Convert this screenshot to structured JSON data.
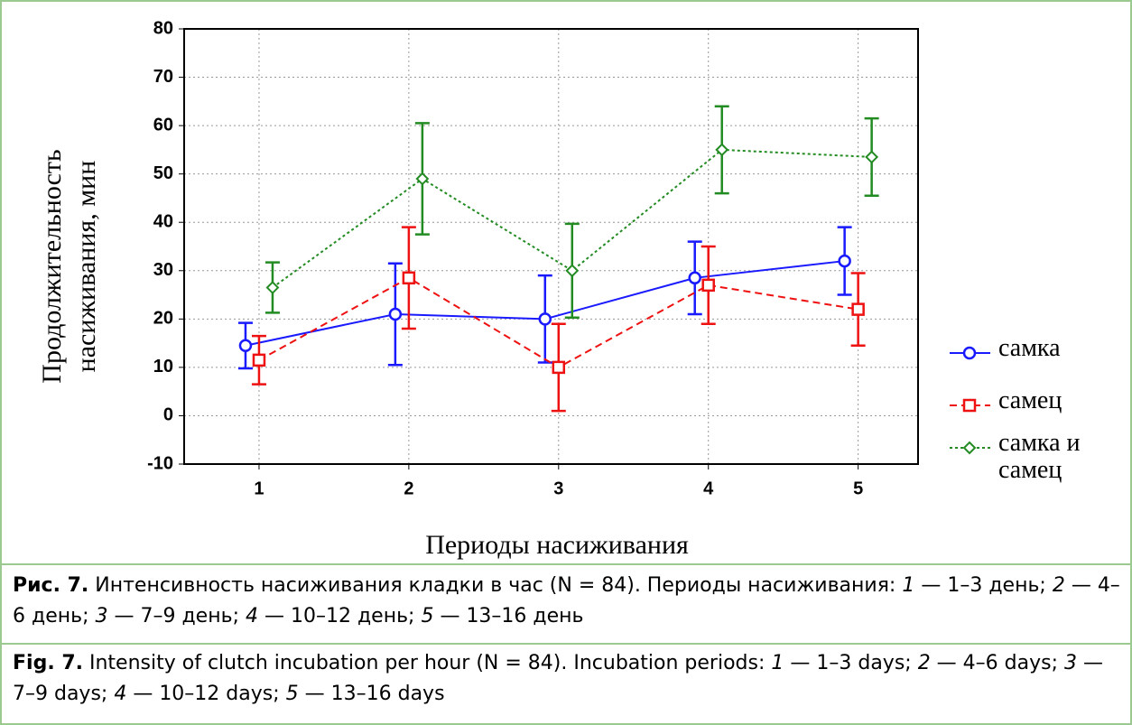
{
  "chart_data": {
    "type": "line",
    "x": [
      1,
      2,
      3,
      4,
      5
    ],
    "xlim": [
      0.5,
      5.4
    ],
    "xticks": [
      1,
      2,
      3,
      4,
      5
    ],
    "ylim": [
      -10,
      80
    ],
    "yticks": [
      -10,
      0,
      10,
      20,
      30,
      40,
      50,
      60,
      70,
      80
    ],
    "ylabel": "Продолжительность насиживания, мин",
    "xlabel": "Периоды насиживания",
    "grid": true,
    "legend": "right",
    "series": [
      {
        "name": "самка",
        "color": "#1a1aff",
        "line_style": "solid",
        "marker": "circle",
        "values": [
          14.5,
          21,
          20,
          28.5,
          32
        ],
        "errors": [
          4.7,
          10.5,
          9,
          7.5,
          7
        ]
      },
      {
        "name": "самец",
        "color": "#ee1111",
        "line_style": "dashed",
        "marker": "square",
        "values": [
          11.5,
          28.5,
          10,
          27,
          22
        ],
        "errors": [
          5,
          10.5,
          9,
          8,
          7.5
        ]
      },
      {
        "name": "самка и самец",
        "color": "#228b22",
        "line_style": "dotted",
        "marker": "diamond",
        "values": [
          26.5,
          49,
          30,
          55,
          53.5
        ],
        "errors": [
          5.2,
          11.5,
          9.7,
          9,
          8
        ]
      }
    ]
  },
  "caption_ru": {
    "label": "Рис. 7.",
    "parts": [
      {
        "text": " Интенсивность насиживания кладки в час (N = 84). Периоды насиживания: ",
        "italic": false
      },
      {
        "text": "1",
        "italic": true
      },
      {
        "text": " — 1–3 день; ",
        "italic": false
      },
      {
        "text": "2",
        "italic": true
      },
      {
        "text": " — 4–6 день; ",
        "italic": false
      },
      {
        "text": "3",
        "italic": true
      },
      {
        "text": " — 7–9 день; ",
        "italic": false
      },
      {
        "text": "4",
        "italic": true
      },
      {
        "text": " — 10–12 день; ",
        "italic": false
      },
      {
        "text": "5",
        "italic": true
      },
      {
        "text": " — 13–16 день",
        "italic": false
      }
    ]
  },
  "caption_en": {
    "label": "Fig. 7.",
    "parts": [
      {
        "text": " Intensity of clutch incubation per hour (N = 84). Incubation periods: ",
        "italic": false
      },
      {
        "text": "1",
        "italic": true
      },
      {
        "text": " — 1–3 days; ",
        "italic": false
      },
      {
        "text": "2",
        "italic": true
      },
      {
        "text": " — 4–6 days; ",
        "italic": false
      },
      {
        "text": "3",
        "italic": true
      },
      {
        "text": " — 7–9 days; ",
        "italic": false
      },
      {
        "text": "4",
        "italic": true
      },
      {
        "text": " — 10–12 days; ",
        "italic": false
      },
      {
        "text": "5",
        "italic": true
      },
      {
        "text": " — 13–16 days",
        "italic": false
      }
    ]
  }
}
